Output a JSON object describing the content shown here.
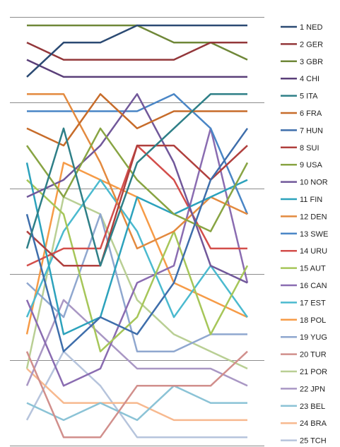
{
  "chart_data": {
    "type": "line",
    "title": "",
    "xlabel": "",
    "ylabel": "",
    "x": [
      1,
      2,
      3,
      4,
      5,
      6,
      7
    ],
    "ylim": [
      25.5,
      0.5
    ],
    "y_gridlines": [
      0.5,
      5.5,
      10.5,
      15.5,
      20.5,
      25.5
    ],
    "grid": true,
    "legend": "right",
    "series": [
      {
        "name": "1 NED",
        "color": "#2b4a73",
        "values": [
          4,
          2,
          2,
          1,
          1,
          1,
          1
        ]
      },
      {
        "name": "2 GER",
        "color": "#93373a",
        "values": [
          2,
          3,
          3,
          3,
          3,
          2,
          2
        ]
      },
      {
        "name": "3 GBR",
        "color": "#6f8738",
        "values": [
          1,
          1,
          1,
          1,
          2,
          2,
          3
        ]
      },
      {
        "name": "4 CHI",
        "color": "#5a3f79",
        "values": [
          3,
          4,
          4,
          4,
          4,
          4,
          4
        ]
      },
      {
        "name": "5 ITA",
        "color": "#2e7f87",
        "values": [
          14,
          7,
          15,
          9,
          7,
          5,
          5
        ]
      },
      {
        "name": "6 FRA",
        "color": "#c76c2a",
        "values": [
          7,
          8,
          5,
          7,
          6,
          6,
          6
        ]
      },
      {
        "name": "7 HUN",
        "color": "#3e6eab",
        "values": [
          12,
          20,
          18,
          19,
          16,
          10,
          7
        ]
      },
      {
        "name": "8 SUI",
        "color": "#b0403e",
        "values": [
          13,
          15,
          15,
          8,
          8,
          10,
          8
        ]
      },
      {
        "name": "9 USA",
        "color": "#88a443",
        "values": [
          8,
          11,
          7,
          10,
          12,
          13,
          9
        ]
      },
      {
        "name": "10 NOR",
        "color": "#71589a",
        "values": [
          11,
          10,
          8,
          5,
          9,
          15,
          16
        ]
      },
      {
        "name": "11 FIN",
        "color": "#2ca2bc",
        "values": [
          9,
          19,
          18,
          11,
          12,
          11,
          10
        ]
      },
      {
        "name": "12 DEN",
        "color": "#e38a3f",
        "values": [
          5,
          5,
          9,
          14,
          13,
          11,
          12
        ]
      },
      {
        "name": "13 SWE",
        "color": "#4a86c6",
        "values": [
          6,
          6,
          6,
          6,
          5,
          7,
          12
        ]
      },
      {
        "name": "14 URU",
        "color": "#d34e4b",
        "values": [
          15,
          14,
          14,
          8,
          10,
          14,
          14
        ]
      },
      {
        "name": "15 AUT",
        "color": "#a6c659",
        "values": [
          10,
          12,
          20,
          18,
          13,
          19,
          15
        ]
      },
      {
        "name": "16 CAN",
        "color": "#8a6cb1",
        "values": [
          17,
          22,
          21,
          16,
          15,
          7,
          16
        ]
      },
      {
        "name": "17 EST",
        "color": "#4bbacf",
        "values": [
          18,
          13,
          10,
          13,
          18,
          15,
          18
        ]
      },
      {
        "name": "18 POL",
        "color": "#f69b47",
        "values": [
          19,
          9,
          10,
          11,
          16,
          17,
          18
        ]
      },
      {
        "name": "19 YUG",
        "color": "#8fa7cf",
        "values": [
          16,
          18,
          12,
          20,
          20,
          19,
          19
        ]
      },
      {
        "name": "20 TUR",
        "color": "#d18f8c",
        "values": [
          20,
          25,
          25,
          22,
          22,
          22,
          20
        ]
      },
      {
        "name": "21 POR",
        "color": "#b9cf94",
        "values": [
          21,
          11,
          12,
          17,
          19,
          20,
          21
        ]
      },
      {
        "name": "22 JPN",
        "color": "#a997c4",
        "values": [
          22,
          17,
          19,
          21,
          21,
          21,
          22
        ]
      },
      {
        "name": "23 BEL",
        "color": "#8bc3d6",
        "values": [
          23,
          24,
          23,
          24,
          22,
          23,
          23
        ]
      },
      {
        "name": "24 BRA",
        "color": "#f7b98f",
        "values": [
          21,
          23,
          23,
          23,
          24,
          24,
          24
        ]
      },
      {
        "name": "25 TCH",
        "color": "#b6c4dc",
        "values": [
          24,
          20,
          22,
          25,
          25,
          25,
          25
        ]
      }
    ]
  }
}
